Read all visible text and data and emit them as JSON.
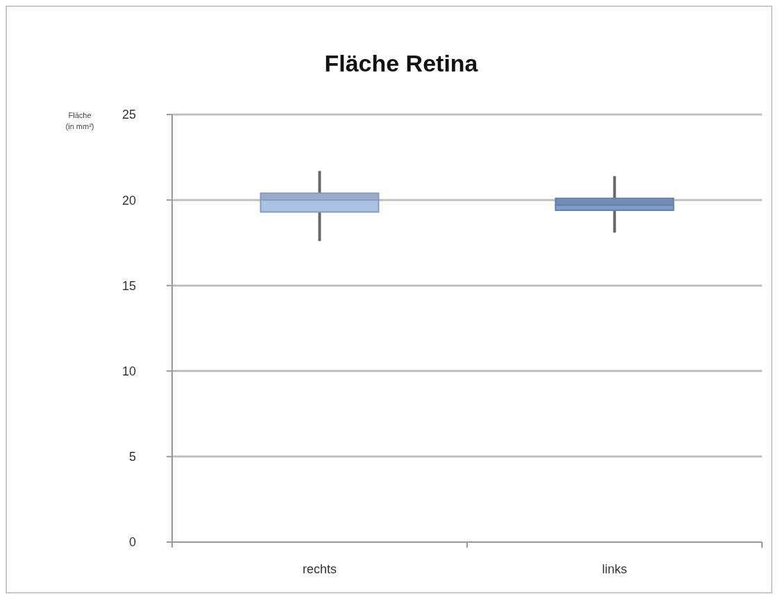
{
  "chart_data": {
    "type": "box",
    "title": "Fläche Retina",
    "ylabel": "Fläche (in mm²)",
    "categories": [
      "rechts",
      "links"
    ],
    "boxes": [
      {
        "low": 17.6,
        "q1": 19.3,
        "median": 20.0,
        "q3": 20.4,
        "high": 21.7
      },
      {
        "low": 18.1,
        "q1": 19.4,
        "median": 19.7,
        "q3": 20.1,
        "high": 21.4
      }
    ],
    "colors": [
      "#a9c1e3",
      "#7f9ecb"
    ],
    "ylim": [
      0,
      25
    ],
    "yticks": [
      0,
      5,
      10,
      15,
      20,
      25
    ],
    "grid": "y"
  }
}
